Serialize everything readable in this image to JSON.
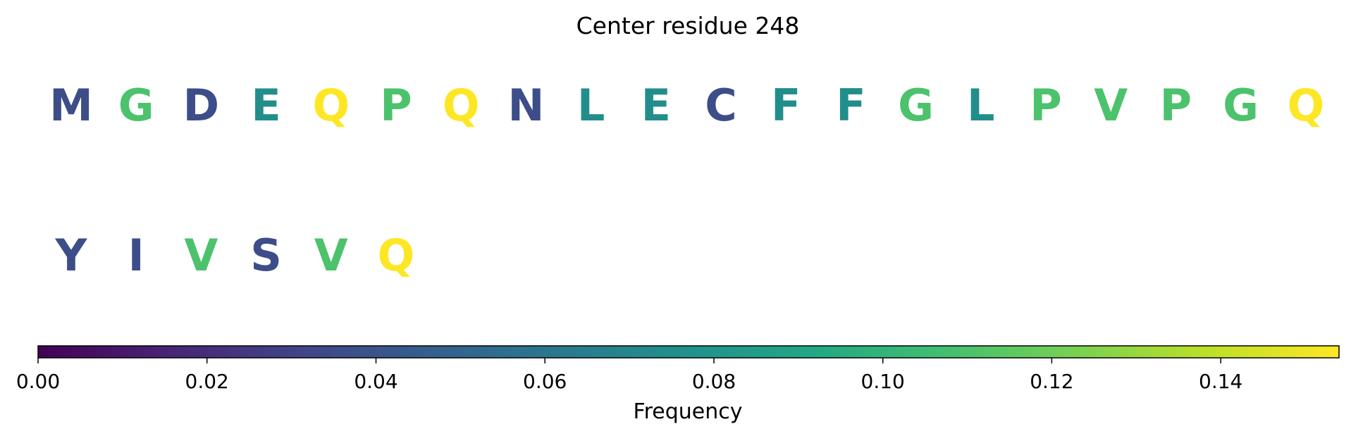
{
  "chart_data": {
    "type": "sequence-heatmap",
    "title": "Center residue 248",
    "rows": [
      {
        "residues": [
          "M",
          "G",
          "D",
          "E",
          "Q",
          "P",
          "Q",
          "N",
          "L",
          "E",
          "C",
          "F",
          "F",
          "G",
          "L",
          "P",
          "V",
          "P",
          "G",
          "Q"
        ],
        "values": [
          0.036,
          0.11,
          0.036,
          0.075,
          0.154,
          0.11,
          0.154,
          0.036,
          0.075,
          0.075,
          0.036,
          0.075,
          0.075,
          0.11,
          0.075,
          0.11,
          0.11,
          0.11,
          0.11,
          0.154
        ]
      },
      {
        "residues": [
          "Y",
          "I",
          "V",
          "S",
          "V",
          "Q"
        ],
        "values": [
          0.036,
          0.036,
          0.11,
          0.036,
          0.11,
          0.154
        ]
      }
    ],
    "colorbar": {
      "label": "Frequency",
      "colormap": "viridis",
      "range": [
        0,
        0.154
      ],
      "ticks": [
        0.0,
        0.02,
        0.04,
        0.06,
        0.08,
        0.1,
        0.12,
        0.14
      ],
      "tick_labels": [
        "0.00",
        "0.02",
        "0.04",
        "0.06",
        "0.08",
        "0.10",
        "0.12",
        "0.14"
      ],
      "orientation": "horizontal",
      "placement": "bottom"
    }
  }
}
